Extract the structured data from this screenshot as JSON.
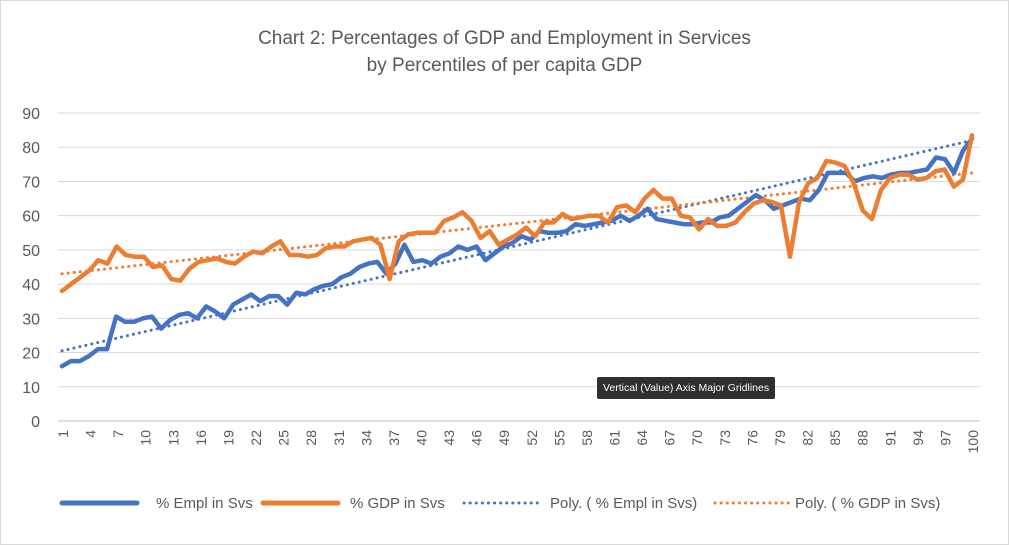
{
  "chart_data": {
    "type": "line",
    "title": "Chart 2: Percentages of GDP and Employment in Services",
    "subtitle": "by Percentiles of per capita GDP",
    "xlabel": "",
    "ylabel": "",
    "ylim": [
      0,
      90
    ],
    "yticks": [
      0,
      10,
      20,
      30,
      40,
      50,
      60,
      70,
      80,
      90
    ],
    "xlim": [
      1,
      100
    ],
    "xticks": [
      1,
      4,
      7,
      10,
      13,
      16,
      19,
      22,
      25,
      28,
      31,
      34,
      37,
      40,
      43,
      46,
      49,
      52,
      55,
      58,
      61,
      64,
      67,
      70,
      73,
      76,
      79,
      82,
      85,
      88,
      91,
      94,
      97,
      100
    ],
    "grid": "horizontal major gridlines",
    "legend_position": "bottom",
    "series": [
      {
        "name": "% Empl in Svs",
        "color": "#4472C4",
        "style": "solid",
        "values": [
          16,
          17.5,
          17.5,
          19,
          21,
          21,
          30.5,
          29,
          29,
          30,
          30.5,
          27,
          29.5,
          31,
          31.5,
          30,
          33.5,
          32,
          30,
          34,
          35.5,
          37,
          35,
          36.5,
          36.5,
          34,
          37.5,
          37,
          38.5,
          39.5,
          40,
          42,
          43,
          45,
          46,
          46.5,
          43,
          46,
          51.5,
          46.5,
          47,
          46,
          48,
          49,
          51,
          50,
          51,
          47,
          49,
          51,
          52,
          54,
          53,
          55.5,
          55,
          55,
          55.5,
          57.5,
          57,
          57.5,
          58,
          58.5,
          60,
          58.5,
          60,
          62,
          59,
          58.5,
          58,
          57.5,
          57.5,
          58,
          58,
          59.5,
          60,
          62,
          64,
          66,
          64.5,
          62,
          63,
          64,
          65,
          64.5,
          67.5,
          72.5,
          72.5,
          72.5,
          70,
          71,
          71.5,
          71,
          72,
          72.5,
          72.5,
          73,
          73.5,
          77,
          76.5,
          72.5,
          79,
          82.5
        ]
      },
      {
        "name": "% GDP in Svs",
        "color": "#ED7D31",
        "style": "solid",
        "values": [
          38,
          40,
          42,
          44,
          47,
          46,
          51,
          48.5,
          48,
          48,
          45,
          45.5,
          41.5,
          41,
          44.5,
          46.5,
          47,
          47.5,
          46.5,
          46,
          48,
          49.5,
          49,
          51,
          52.5,
          48.5,
          48.5,
          48,
          48.5,
          50.5,
          51,
          51,
          52.5,
          53,
          53.5,
          51.5,
          41.5,
          52.5,
          54.5,
          55,
          55,
          55,
          58.5,
          59.5,
          61,
          58.5,
          53.5,
          55.5,
          51.5,
          53,
          54.5,
          56.5,
          54,
          58,
          58,
          60.5,
          59,
          59.5,
          60,
          60,
          58,
          62.5,
          63,
          61,
          65,
          67.5,
          65,
          65,
          60,
          59.5,
          56,
          59,
          57,
          57,
          58,
          61,
          63.5,
          64.5,
          64,
          63,
          48,
          64,
          69.5,
          71,
          76,
          75.5,
          74.5,
          69.5,
          61.5,
          59,
          67.5,
          71,
          72,
          72,
          70.5,
          71,
          73,
          73.5,
          68.5,
          70.5,
          83.5
        ]
      },
      {
        "name": "Poly. ( % Empl in Svs)",
        "color": "#4472C4",
        "style": "dotted",
        "values": [
          20.5,
          82
        ]
      },
      {
        "name": "Poly. ( % GDP in Svs)",
        "color": "#ED7D31",
        "style": "dotted",
        "values": [
          43,
          72.5
        ]
      }
    ]
  },
  "tooltip": {
    "text": "Vertical (Value) Axis Major Gridlines"
  }
}
